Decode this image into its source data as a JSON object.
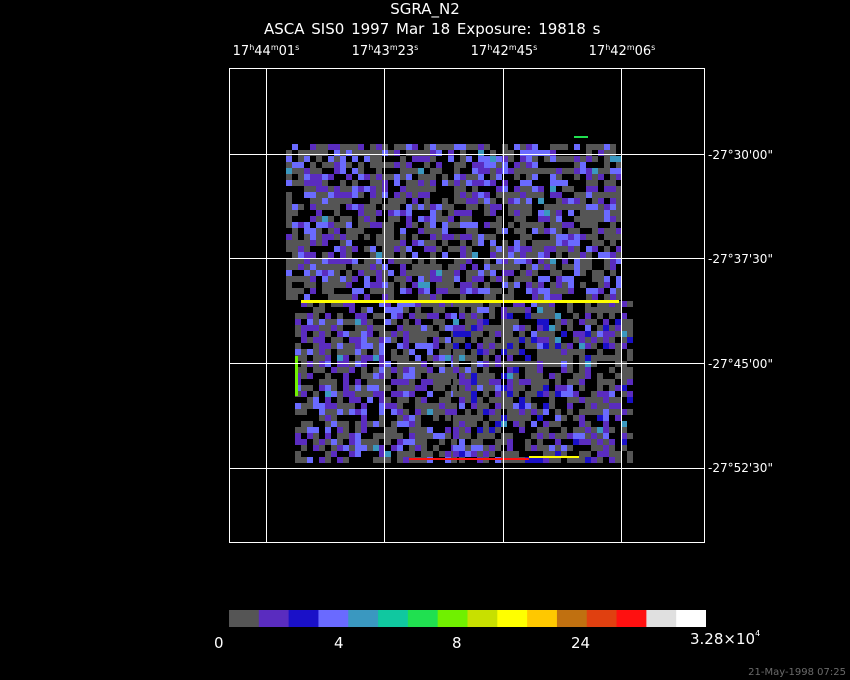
{
  "header": {
    "title": "SGRA_N2",
    "subtitle": "ASCA SIS0    1997 Mar 18    Exposure: 19818 s"
  },
  "ra_ticks": [
    {
      "h": "17",
      "m": "44",
      "s": "01"
    },
    {
      "h": "17",
      "m": "43",
      "s": "23"
    },
    {
      "h": "17",
      "m": "42",
      "s": "45"
    },
    {
      "h": "17",
      "m": "42",
      "s": "06"
    }
  ],
  "dec_ticks": [
    "-27°30'00\"",
    "-27°37'30\"",
    "-27°45'00\"",
    "-27°52'30\""
  ],
  "colorbar": {
    "colors": [
      "#555555",
      "#5a2cbf",
      "#1a10c8",
      "#6a6aff",
      "#3a98c0",
      "#10c8a0",
      "#20e050",
      "#70f000",
      "#c8e000",
      "#ffff00",
      "#ffc800",
      "#c07010",
      "#e04010",
      "#ff1010",
      "#e0e0e0",
      "#ffffff"
    ],
    "labels": {
      "min": "0",
      "l1": "4",
      "l2": "8",
      "l3": "24",
      "max_base": "3.28×10",
      "max_exp": "4"
    }
  },
  "timestamp": "21-May-1998 07:25"
}
